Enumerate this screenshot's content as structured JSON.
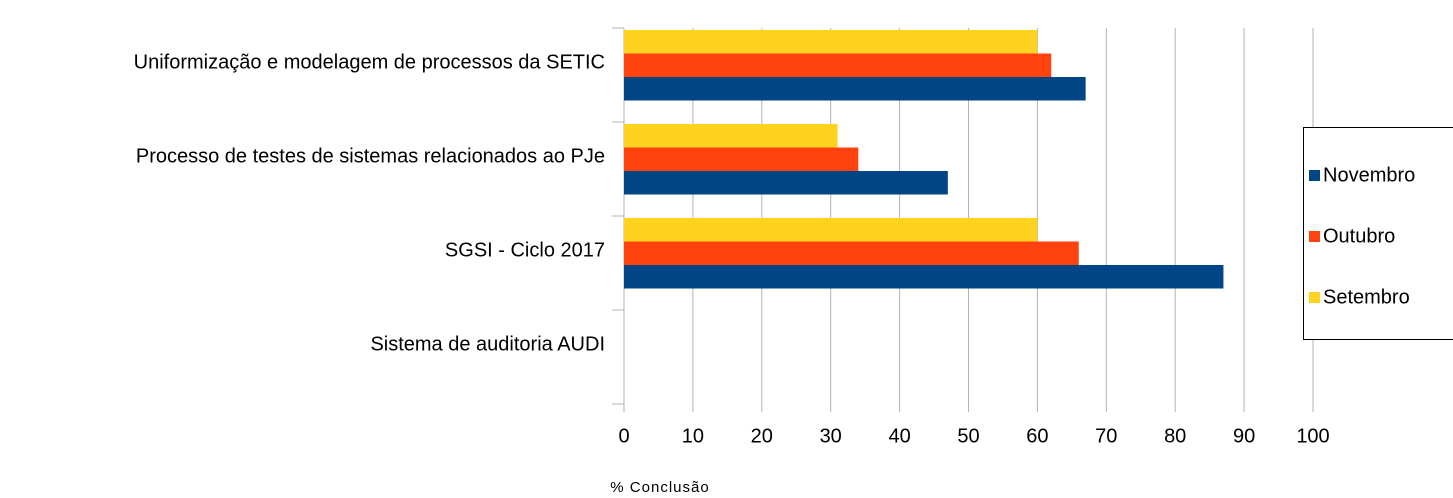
{
  "chart_data": {
    "type": "bar",
    "orientation": "horizontal",
    "categories": [
      "Uniformização e modelagem de processos da SETIC",
      "Processo de testes de sistemas relacionados ao PJe",
      "SGSI - Ciclo 2017",
      "Sistema de auditoria AUDI"
    ],
    "series": [
      {
        "name": "Novembro",
        "color": "#004586",
        "values": [
          67,
          47,
          87,
          null
        ]
      },
      {
        "name": "Outubro",
        "color": "#ff420e",
        "values": [
          62,
          34,
          66,
          null
        ]
      },
      {
        "name": "Setembro",
        "color": "#ffd320",
        "values": [
          60,
          31,
          60,
          null
        ]
      }
    ],
    "xlabel": "% Conclusão",
    "xlim": [
      0,
      100
    ],
    "xticks": [
      0,
      10,
      20,
      30,
      40,
      50,
      60,
      70,
      80,
      90,
      100
    ],
    "grid": true,
    "legend": "right"
  }
}
